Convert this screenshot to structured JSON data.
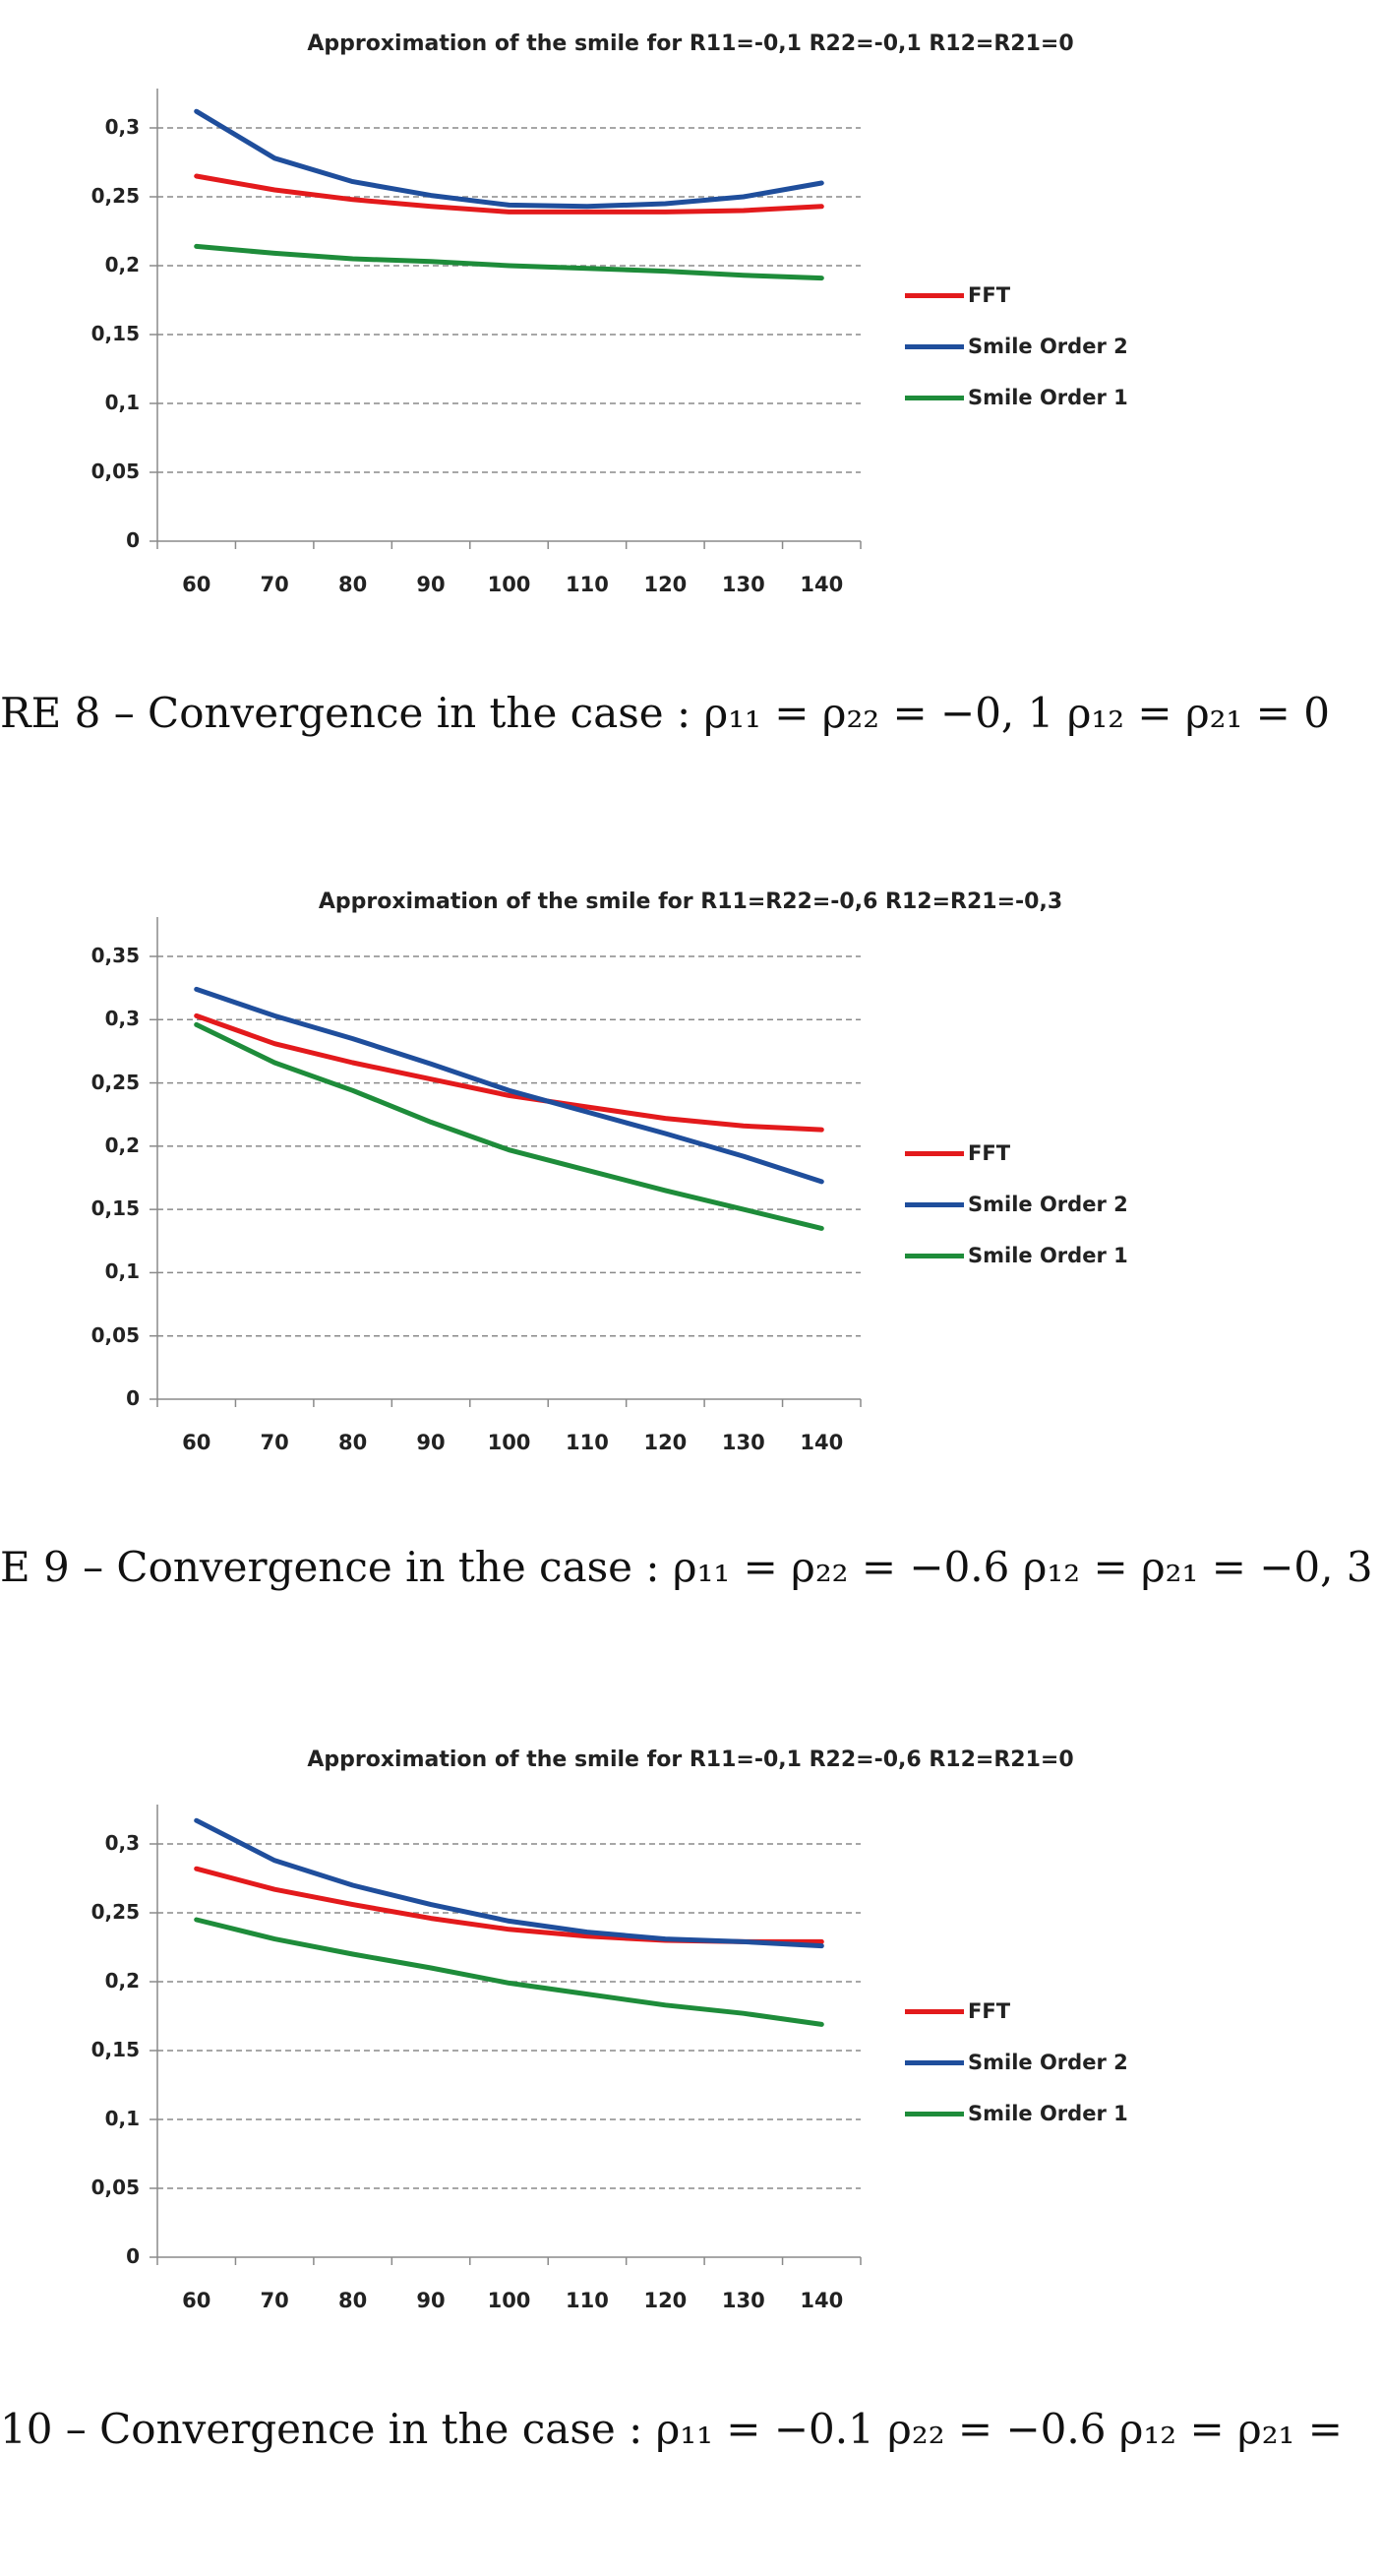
{
  "chart_data": [
    {
      "type": "line",
      "title": "Approximation of the smile for R11=-0,1 R22=-0,1 R12=R21=0",
      "caption": "RE 8 – Convergence in the case : ρ₁₁ = ρ₂₂ = −0, 1  ρ₁₂ = ρ₂₁ = 0",
      "x": [
        60,
        70,
        80,
        90,
        100,
        110,
        120,
        130,
        140
      ],
      "ylim": [
        0,
        0.3
      ],
      "yticks": [
        "0",
        "0,05",
        "0,1",
        "0,15",
        "0,2",
        "0,25",
        "0,3"
      ],
      "ytick_values": [
        0,
        0.05,
        0.1,
        0.15,
        0.2,
        0.25,
        0.3
      ],
      "grid": true,
      "legend": "right",
      "series": [
        {
          "name": "FFT",
          "color": "#e31a1c",
          "values": [
            0.265,
            0.255,
            0.248,
            0.243,
            0.239,
            0.239,
            0.239,
            0.24,
            0.243
          ]
        },
        {
          "name": "Smile Order 2",
          "color": "#1f4e9c",
          "values": [
            0.312,
            0.278,
            0.261,
            0.251,
            0.244,
            0.243,
            0.245,
            0.25,
            0.26
          ]
        },
        {
          "name": "Smile Order 1",
          "color": "#1e8c3a",
          "values": [
            0.214,
            0.209,
            0.205,
            0.203,
            0.2,
            0.198,
            0.196,
            0.193,
            0.191
          ]
        }
      ]
    },
    {
      "type": "line",
      "title": "Approximation of the smile for R11=R22=-0,6 R12=R21=-0,3",
      "caption": "E 9 – Convergence in the case : ρ₁₁ = ρ₂₂ = −0.6  ρ₁₂ = ρ₂₁ = −0, 3",
      "x": [
        60,
        70,
        80,
        90,
        100,
        110,
        120,
        130,
        140
      ],
      "ylim": [
        0,
        0.35
      ],
      "yticks": [
        "0",
        "0,05",
        "0,1",
        "0,15",
        "0,2",
        "0,25",
        "0,3",
        "0,35"
      ],
      "ytick_values": [
        0,
        0.05,
        0.1,
        0.15,
        0.2,
        0.25,
        0.3,
        0.35
      ],
      "grid": true,
      "legend": "right",
      "series": [
        {
          "name": "FFT",
          "color": "#e31a1c",
          "values": [
            0.303,
            0.281,
            0.266,
            0.253,
            0.24,
            0.231,
            0.222,
            0.216,
            0.213
          ]
        },
        {
          "name": "Smile Order 2",
          "color": "#1f4e9c",
          "values": [
            0.324,
            0.303,
            0.285,
            0.265,
            0.244,
            0.227,
            0.21,
            0.192,
            0.172
          ]
        },
        {
          "name": "Smile Order 1",
          "color": "#1e8c3a",
          "values": [
            0.296,
            0.266,
            0.244,
            0.219,
            0.197,
            0.181,
            0.165,
            0.15,
            0.135
          ]
        }
      ]
    },
    {
      "type": "line",
      "title": "Approximation of the smile for R11=-0,1 R22=-0,6 R12=R21=0",
      "caption": "10 – Convergence in the case : ρ₁₁ = −0.1  ρ₂₂ = −0.6  ρ₁₂ = ρ₂₁ =",
      "x": [
        60,
        70,
        80,
        90,
        100,
        110,
        120,
        130,
        140
      ],
      "ylim": [
        0,
        0.3
      ],
      "yticks": [
        "0",
        "0,05",
        "0,1",
        "0,15",
        "0,2",
        "0,25",
        "0,3"
      ],
      "ytick_values": [
        0,
        0.05,
        0.1,
        0.15,
        0.2,
        0.25,
        0.3
      ],
      "grid": true,
      "legend": "right",
      "series": [
        {
          "name": "FFT",
          "color": "#e31a1c",
          "values": [
            0.282,
            0.267,
            0.256,
            0.246,
            0.238,
            0.233,
            0.23,
            0.229,
            0.229
          ]
        },
        {
          "name": "Smile Order 2",
          "color": "#1f4e9c",
          "values": [
            0.317,
            0.288,
            0.27,
            0.256,
            0.244,
            0.236,
            0.231,
            0.229,
            0.226
          ]
        },
        {
          "name": "Smile Order 1",
          "color": "#1e8c3a",
          "values": [
            0.245,
            0.231,
            0.22,
            0.21,
            0.199,
            0.191,
            0.183,
            0.177,
            0.169
          ]
        }
      ]
    }
  ]
}
